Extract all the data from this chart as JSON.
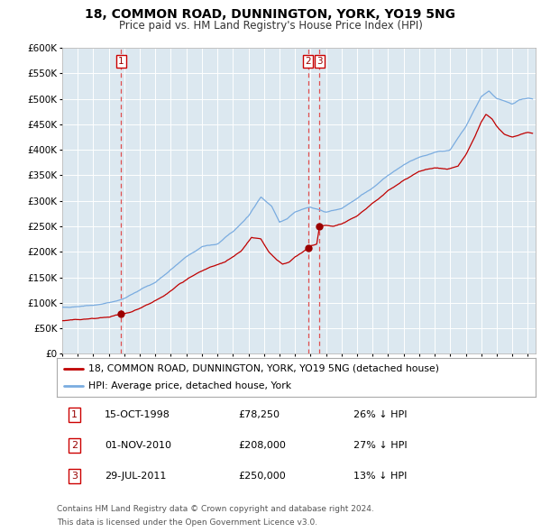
{
  "title": "18, COMMON ROAD, DUNNINGTON, YORK, YO19 5NG",
  "subtitle": "Price paid vs. HM Land Registry's House Price Index (HPI)",
  "ylim": [
    0,
    600000
  ],
  "yticks": [
    0,
    50000,
    100000,
    150000,
    200000,
    250000,
    300000,
    350000,
    400000,
    450000,
    500000,
    550000,
    600000
  ],
  "xlim_start": 1995.0,
  "xlim_end": 2025.5,
  "xtick_years": [
    1995,
    1996,
    1997,
    1998,
    1999,
    2000,
    2001,
    2002,
    2003,
    2004,
    2005,
    2006,
    2007,
    2008,
    2009,
    2010,
    2011,
    2012,
    2013,
    2014,
    2015,
    2016,
    2017,
    2018,
    2019,
    2020,
    2021,
    2022,
    2023,
    2024,
    2025
  ],
  "bg_color": "#dce8f0",
  "grid_color": "#ffffff",
  "red_line_color": "#c00000",
  "blue_line_color": "#7aace0",
  "vline_color": "#e05050",
  "sale_marker_color": "#9b0000",
  "sale_points": [
    {
      "year": 1998.79,
      "price": 78250,
      "label": "1"
    },
    {
      "year": 2010.84,
      "price": 208000,
      "label": "2"
    },
    {
      "year": 2011.58,
      "price": 250000,
      "label": "3"
    }
  ],
  "legend_entries": [
    {
      "label": "18, COMMON ROAD, DUNNINGTON, YORK, YO19 5NG (detached house)",
      "color": "#c00000"
    },
    {
      "label": "HPI: Average price, detached house, York",
      "color": "#7aace0"
    }
  ],
  "table_rows": [
    {
      "num": "1",
      "date": "15-OCT-1998",
      "price": "£78,250",
      "pct": "26% ↓ HPI"
    },
    {
      "num": "2",
      "date": "01-NOV-2010",
      "price": "£208,000",
      "pct": "27% ↓ HPI"
    },
    {
      "num": "3",
      "date": "29-JUL-2011",
      "price": "£250,000",
      "pct": "13% ↓ HPI"
    }
  ],
  "footnote1": "Contains HM Land Registry data © Crown copyright and database right 2024.",
  "footnote2": "This data is licensed under the Open Government Licence v3.0."
}
